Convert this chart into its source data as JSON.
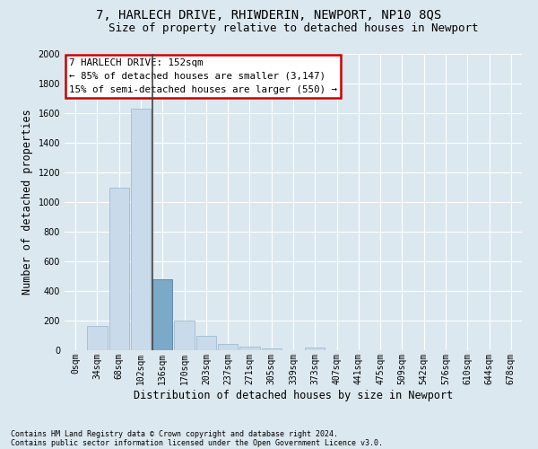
{
  "title": "7, HARLECH DRIVE, RHIWDERIN, NEWPORT, NP10 8QS",
  "subtitle": "Size of property relative to detached houses in Newport",
  "xlabel": "Distribution of detached houses by size in Newport",
  "ylabel": "Number of detached properties",
  "bar_color": "#c9daea",
  "bar_edge_color": "#a0bcd0",
  "highlight_bar_index": 4,
  "highlight_bar_color": "#7aaac8",
  "highlight_bar_edge_color": "#5580a0",
  "vline_color": "#444444",
  "categories": [
    "0sqm",
    "34sqm",
    "68sqm",
    "102sqm",
    "136sqm",
    "170sqm",
    "203sqm",
    "237sqm",
    "271sqm",
    "305sqm",
    "339sqm",
    "373sqm",
    "407sqm",
    "441sqm",
    "475sqm",
    "509sqm",
    "542sqm",
    "576sqm",
    "610sqm",
    "644sqm",
    "678sqm"
  ],
  "values": [
    0,
    165,
    1095,
    1630,
    480,
    200,
    100,
    40,
    22,
    15,
    0,
    18,
    0,
    0,
    0,
    0,
    0,
    0,
    0,
    0,
    0
  ],
  "ylim": [
    0,
    2000
  ],
  "yticks": [
    0,
    200,
    400,
    600,
    800,
    1000,
    1200,
    1400,
    1600,
    1800,
    2000
  ],
  "annotation_text": "7 HARLECH DRIVE: 152sqm\n← 85% of detached houses are smaller (3,147)\n15% of semi-detached houses are larger (550) →",
  "annotation_box_color": "#ffffff",
  "annotation_box_edge": "#cc0000",
  "footnote1": "Contains HM Land Registry data © Crown copyright and database right 2024.",
  "footnote2": "Contains public sector information licensed under the Open Government Licence v3.0.",
  "bg_color": "#dce8f0",
  "plot_bg_color": "#dce8f0",
  "title_fontsize": 10,
  "subtitle_fontsize": 9,
  "tick_fontsize": 7,
  "ylabel_fontsize": 8.5,
  "xlabel_fontsize": 8.5,
  "footnote_fontsize": 6
}
